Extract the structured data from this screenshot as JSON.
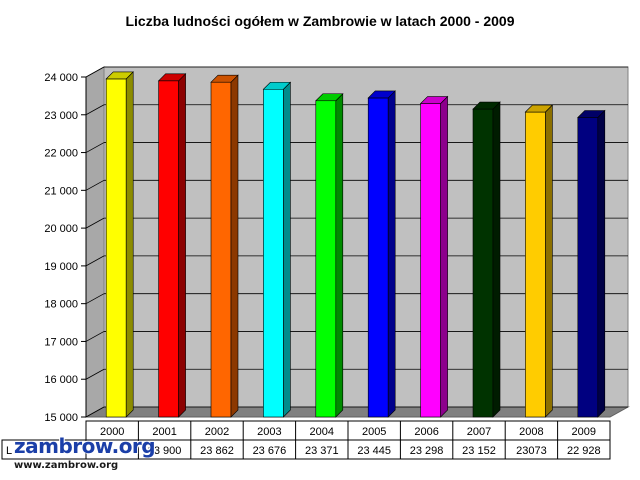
{
  "chart_data": {
    "type": "bar",
    "title": "Liczba ludności ogółem w Zambrowie w latach 2000 - 2009",
    "xlabel": "",
    "ylabel": "",
    "categories": [
      "2000",
      "2001",
      "2002",
      "2003",
      "2004",
      "2005",
      "2006",
      "2007",
      "2008",
      "2009"
    ],
    "values": [
      23950,
      23900,
      23862,
      23676,
      23371,
      23445,
      23298,
      23152,
      23073,
      22928
    ],
    "table_values": [
      "",
      "23 900",
      "23 862",
      "23 676",
      "23 371",
      "23 445",
      "23 298",
      "23 152",
      "23073",
      "22 928"
    ],
    "table_row_label": "L",
    "ylim": [
      15000,
      24000
    ],
    "yticks": [
      "15 000",
      "16 000",
      "17 000",
      "18 000",
      "19 000",
      "20 000",
      "21 000",
      "22 000",
      "23 000",
      "24 000"
    ],
    "grid": true,
    "legend": "none",
    "bar_colors": [
      "#ffff00",
      "#ff0000",
      "#ff6600",
      "#00ffff",
      "#00ff00",
      "#0000ff",
      "#ff00ff",
      "#003300",
      "#ffcc00",
      "#000080"
    ],
    "plot_background": "#c0c0c0",
    "floor_color": "#808080"
  },
  "watermark": {
    "brand": "zambrow.org",
    "url": "www.zambrow.org"
  }
}
